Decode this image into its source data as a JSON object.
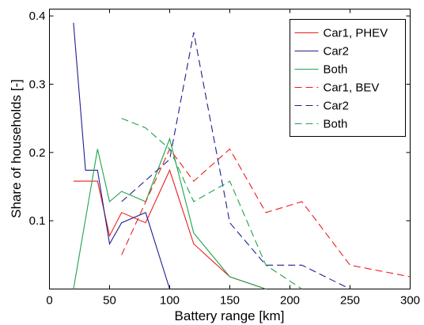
{
  "chart_data": {
    "type": "line",
    "title": "",
    "xlabel": "Battery range [km]",
    "ylabel": "Share of households [-]",
    "xlim": [
      0,
      300
    ],
    "ylim": [
      0,
      0.41
    ],
    "xticks": [
      0,
      50,
      100,
      150,
      200,
      250,
      300
    ],
    "yticks": [
      0.1,
      0.2,
      0.3,
      0.4
    ],
    "grid": false,
    "legend_position": "top-right",
    "series": [
      {
        "name": "Car1, PHEV",
        "color": "#ee1c1c",
        "dash": "solid",
        "x": [
          20,
          40,
          50,
          60,
          80,
          100,
          120,
          150,
          180
        ],
        "y": [
          0.158,
          0.158,
          0.078,
          0.112,
          0.097,
          0.174,
          0.066,
          0.018,
          0.0
        ]
      },
      {
        "name": "Car2",
        "color": "#1f1f8f",
        "dash": "solid",
        "x": [
          20,
          30,
          40,
          50,
          60,
          80,
          100
        ],
        "y": [
          0.39,
          0.174,
          0.174,
          0.066,
          0.097,
          0.112,
          0.0
        ]
      },
      {
        "name": "Both",
        "color": "#1ea34c",
        "dash": "solid",
        "x": [
          20,
          40,
          50,
          60,
          80,
          100,
          120,
          150,
          180
        ],
        "y": [
          0.0,
          0.205,
          0.128,
          0.143,
          0.128,
          0.22,
          0.082,
          0.018,
          0.0
        ]
      },
      {
        "name": "Car1, BEV",
        "color": "#ee1c1c",
        "dash": "dashed",
        "x": [
          60,
          100,
          120,
          150,
          180,
          210,
          250,
          300
        ],
        "y": [
          0.05,
          0.205,
          0.158,
          0.205,
          0.112,
          0.128,
          0.035,
          0.018
        ]
      },
      {
        "name": "Car2",
        "color": "#1f1f8f",
        "dash": "dashed",
        "x": [
          60,
          100,
          120,
          150,
          180,
          210,
          250
        ],
        "y": [
          0.128,
          0.19,
          0.376,
          0.097,
          0.035,
          0.035,
          0.0
        ]
      },
      {
        "name": "Both",
        "color": "#1ea34c",
        "dash": "dashed",
        "x": [
          60,
          80,
          100,
          120,
          150,
          180,
          210
        ],
        "y": [
          0.25,
          0.236,
          0.205,
          0.128,
          0.158,
          0.035,
          0.0
        ]
      }
    ]
  }
}
